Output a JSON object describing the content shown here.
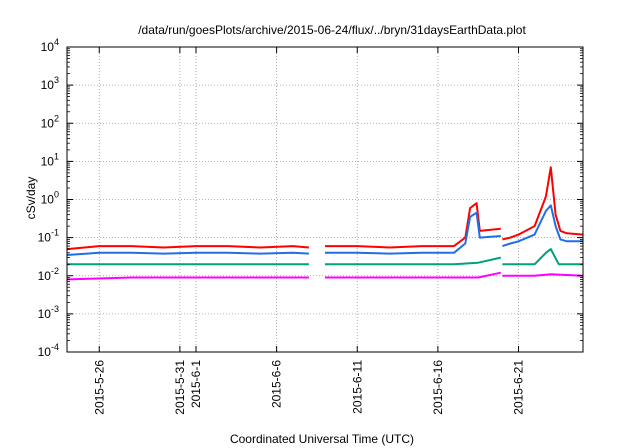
{
  "chart_data": {
    "type": "line",
    "title": "/data/run/goesPlots/archive/2015-06-24/flux/../bryn/31daysEarthData.plot",
    "xlabel": "Coordinated Universal Time (UTC)",
    "ylabel": "cSv/day",
    "y_scale": "log",
    "ylim": [
      0.0001,
      10000
    ],
    "xlim": [
      "2015-05-24",
      "2015-06-25"
    ],
    "grid": true,
    "y_ticks": [
      {
        "value": 0.0001,
        "base": "10",
        "exp": "-4"
      },
      {
        "value": 0.001,
        "base": "10",
        "exp": "-3"
      },
      {
        "value": 0.01,
        "base": "10",
        "exp": "-2"
      },
      {
        "value": 0.1,
        "base": "10",
        "exp": "-1"
      },
      {
        "value": 1,
        "base": "10",
        "exp": "0"
      },
      {
        "value": 10,
        "base": "10",
        "exp": "1"
      },
      {
        "value": 100,
        "base": "10",
        "exp": "2"
      },
      {
        "value": 1000,
        "base": "10",
        "exp": "3"
      },
      {
        "value": 10000,
        "base": "10",
        "exp": "4"
      }
    ],
    "x_ticks": [
      {
        "date": "2015-05-26",
        "label": "2015-5-26"
      },
      {
        "date": "2015-05-31",
        "label": "2015-5-31"
      },
      {
        "date": "2015-06-01",
        "label": "2015-6-1"
      },
      {
        "date": "2015-06-06",
        "label": "2015-6-6"
      },
      {
        "date": "2015-06-11",
        "label": "2015-6-11"
      },
      {
        "date": "2015-06-16",
        "label": "2015-6-16"
      },
      {
        "date": "2015-06-21",
        "label": "2015-6-21"
      }
    ],
    "series": [
      {
        "color": "#ff0000",
        "points": [
          [
            "2015-05-24",
            0.05
          ],
          [
            "2015-05-26",
            0.06
          ],
          [
            "2015-05-28",
            0.06
          ],
          [
            "2015-05-30",
            0.055
          ],
          [
            "2015-06-01",
            0.06
          ],
          [
            "2015-06-03",
            0.06
          ],
          [
            "2015-06-05",
            0.055
          ],
          [
            "2015-06-07",
            0.06
          ],
          [
            "2015-06-08",
            0.055
          ],
          null,
          [
            "2015-06-09",
            0.06
          ],
          [
            "2015-06-11",
            0.06
          ],
          [
            "2015-06-13",
            0.055
          ],
          [
            "2015-06-15",
            0.06
          ],
          [
            "2015-06-17",
            0.06
          ],
          [
            "2015-06-17.7",
            0.1
          ],
          [
            "2015-06-18",
            0.6
          ],
          [
            "2015-06-18.4",
            0.8
          ],
          [
            "2015-06-18.6",
            0.15
          ],
          [
            "2015-06-19.9",
            0.17
          ],
          null,
          [
            "2015-06-20",
            0.09
          ],
          [
            "2015-06-20.5",
            0.1
          ],
          [
            "2015-06-21",
            0.12
          ],
          [
            "2015-06-22",
            0.2
          ],
          [
            "2015-06-22.7",
            1.2
          ],
          [
            "2015-06-23",
            7
          ],
          [
            "2015-06-23.3",
            0.4
          ],
          [
            "2015-06-23.6",
            0.15
          ],
          [
            "2015-06-24",
            0.13
          ],
          [
            "2015-06-25",
            0.12
          ]
        ]
      },
      {
        "color": "#1f6fe6",
        "points": [
          [
            "2015-05-24",
            0.035
          ],
          [
            "2015-05-26",
            0.04
          ],
          [
            "2015-05-28",
            0.04
          ],
          [
            "2015-05-30",
            0.038
          ],
          [
            "2015-06-01",
            0.04
          ],
          [
            "2015-06-03",
            0.04
          ],
          [
            "2015-06-05",
            0.038
          ],
          [
            "2015-06-07",
            0.04
          ],
          [
            "2015-06-08",
            0.038
          ],
          null,
          [
            "2015-06-09",
            0.04
          ],
          [
            "2015-06-11",
            0.04
          ],
          [
            "2015-06-13",
            0.038
          ],
          [
            "2015-06-15",
            0.04
          ],
          [
            "2015-06-17",
            0.04
          ],
          [
            "2015-06-17.7",
            0.07
          ],
          [
            "2015-06-18",
            0.35
          ],
          [
            "2015-06-18.4",
            0.45
          ],
          [
            "2015-06-18.6",
            0.1
          ],
          [
            "2015-06-19.9",
            0.11
          ],
          null,
          [
            "2015-06-20",
            0.06
          ],
          [
            "2015-06-20.5",
            0.07
          ],
          [
            "2015-06-21",
            0.08
          ],
          [
            "2015-06-22",
            0.12
          ],
          [
            "2015-06-22.7",
            0.5
          ],
          [
            "2015-06-23",
            0.7
          ],
          [
            "2015-06-23.3",
            0.2
          ],
          [
            "2015-06-23.6",
            0.09
          ],
          [
            "2015-06-24",
            0.08
          ],
          [
            "2015-06-25",
            0.08
          ]
        ]
      },
      {
        "color": "#00a080",
        "points": [
          [
            "2015-05-24",
            0.02
          ],
          [
            "2015-05-28",
            0.02
          ],
          [
            "2015-06-01",
            0.02
          ],
          [
            "2015-06-05",
            0.02
          ],
          [
            "2015-06-08",
            0.02
          ],
          null,
          [
            "2015-06-09",
            0.02
          ],
          [
            "2015-06-13",
            0.02
          ],
          [
            "2015-06-17",
            0.02
          ],
          [
            "2015-06-18.5",
            0.022
          ],
          [
            "2015-06-19.9",
            0.03
          ],
          null,
          [
            "2015-06-20",
            0.02
          ],
          [
            "2015-06-22",
            0.02
          ],
          [
            "2015-06-22.7",
            0.04
          ],
          [
            "2015-06-23",
            0.05
          ],
          [
            "2015-06-23.5",
            0.02
          ],
          [
            "2015-06-25",
            0.02
          ]
        ]
      },
      {
        "color": "#ff00ff",
        "points": [
          [
            "2015-05-24",
            0.008
          ],
          [
            "2015-05-28",
            0.009
          ],
          [
            "2015-06-01",
            0.009
          ],
          [
            "2015-06-05",
            0.009
          ],
          [
            "2015-06-08",
            0.009
          ],
          null,
          [
            "2015-06-09",
            0.009
          ],
          [
            "2015-06-13",
            0.009
          ],
          [
            "2015-06-17",
            0.009
          ],
          [
            "2015-06-18.5",
            0.009
          ],
          [
            "2015-06-19.9",
            0.012
          ],
          null,
          [
            "2015-06-20",
            0.01
          ],
          [
            "2015-06-22",
            0.01
          ],
          [
            "2015-06-23",
            0.011
          ],
          [
            "2015-06-25",
            0.01
          ]
        ]
      }
    ]
  }
}
